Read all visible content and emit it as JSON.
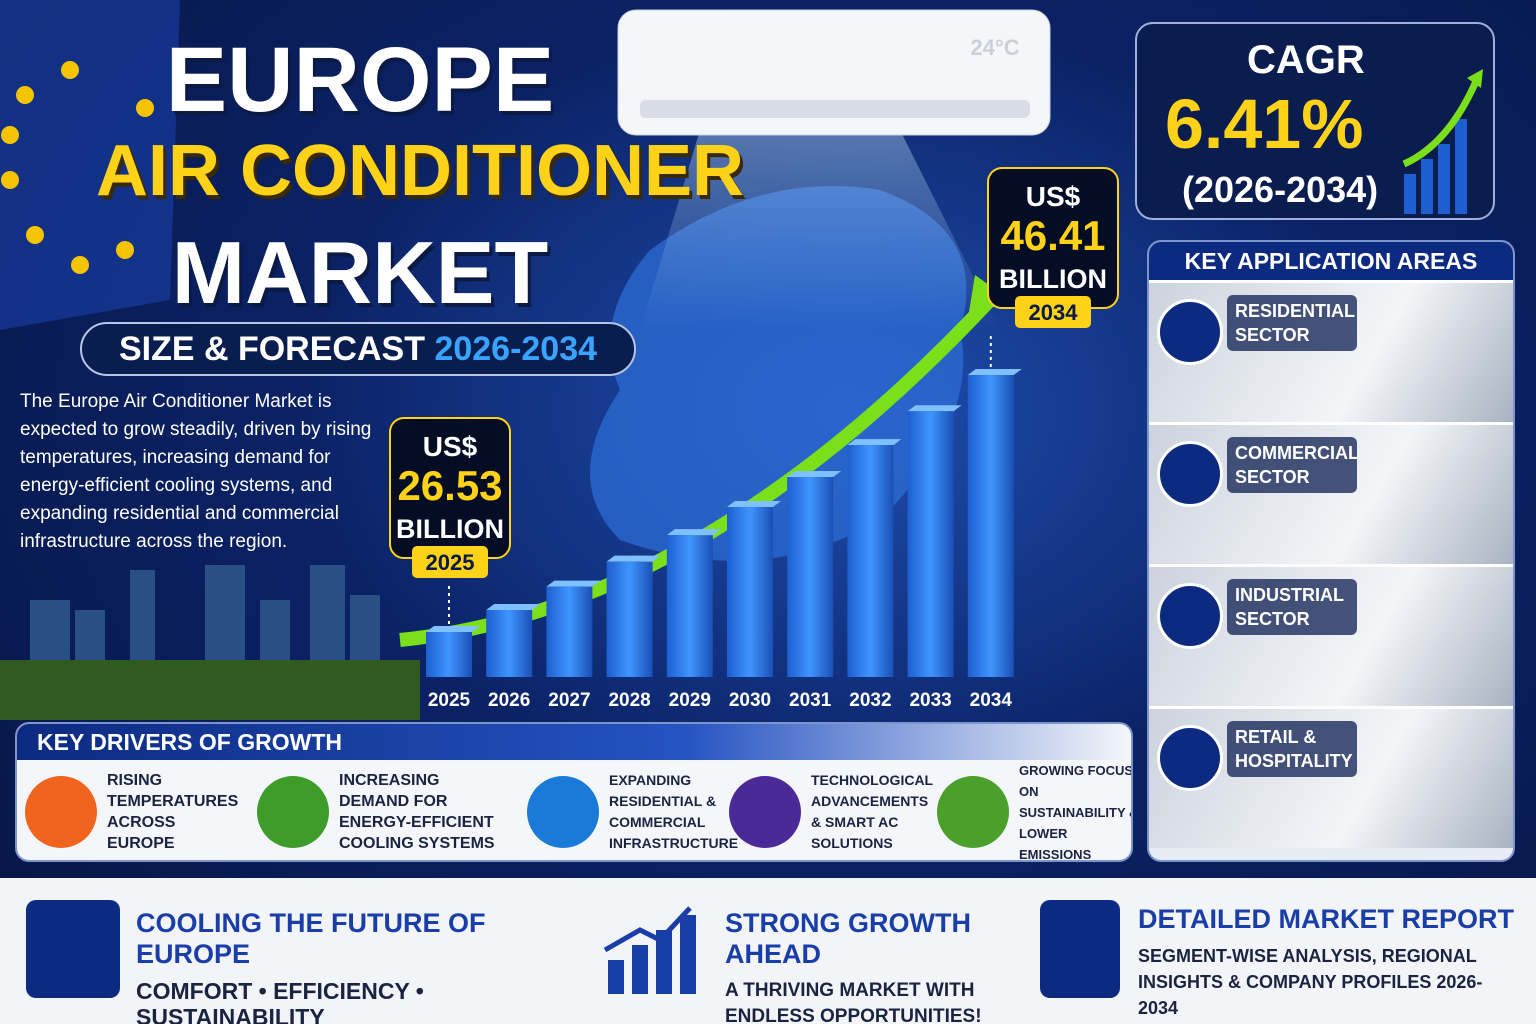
{
  "header": {
    "title_line_1": "EUROPE",
    "title_line_2": "AIR CONDITIONER",
    "title_line_3": "MARKET",
    "subtitle": "SIZE & FORECAST",
    "subtitle_years": "2026-2034"
  },
  "ac_display": "24°C",
  "description": "The Europe Air Conditioner Market is expected to grow steadily, driven by rising temperatures, increasing demand for energy-efficient cooling systems, and expanding residential and commercial infrastructure across the region.",
  "chart_data": {
    "type": "bar",
    "categories": [
      "2025",
      "2026",
      "2027",
      "2028",
      "2029",
      "2030",
      "2031",
      "2032",
      "2033",
      "2034"
    ],
    "values": [
      26.53,
      28.23,
      30.04,
      31.97,
      34.02,
      36.2,
      38.52,
      40.99,
      43.61,
      46.41
    ],
    "color": "#2f7fe6",
    "annotations": {
      "currency": "US$",
      "unit": "BILLION"
    }
  },
  "cagr": {
    "label": "CAGR",
    "value": "6.41%",
    "period": "(2026-2034)"
  },
  "applications": {
    "title": "KEY APPLICATION AREAS",
    "items": [
      "RESIDENTIAL SECTOR",
      "COMMERCIAL SECTOR",
      "INDUSTRIAL SECTOR",
      "RETAIL & HOSPITALITY"
    ]
  },
  "drivers": {
    "title": "KEY DRIVERS OF GROWTH",
    "items": [
      "RISING TEMPERATURES ACROSS EUROPE",
      "INCREASING DEMAND FOR ENERGY-EFFICIENT COOLING SYSTEMS",
      "EXPANDING RESIDENTIAL & COMMERCIAL INFRASTRUCTURE",
      "TECHNOLOGICAL ADVANCEMENTS & SMART AC SOLUTIONS",
      "GROWING FOCUS ON SUSTAINABILITY & LOWER EMISSIONS"
    ]
  },
  "footer": [
    {
      "title": "COOLING THE FUTURE OF EUROPE",
      "text": "COMFORT • EFFICIENCY • SUSTAINABILITY"
    },
    {
      "title": "STRONG GROWTH AHEAD",
      "text": "A THRIVING MARKET WITH ENDLESS OPPORTUNITIES!"
    },
    {
      "title": "DETAILED MARKET REPORT",
      "text": "SEGMENT-WISE ANALYSIS, REGIONAL INSIGHTS & COMPANY PROFILES 2026-2034"
    }
  ]
}
